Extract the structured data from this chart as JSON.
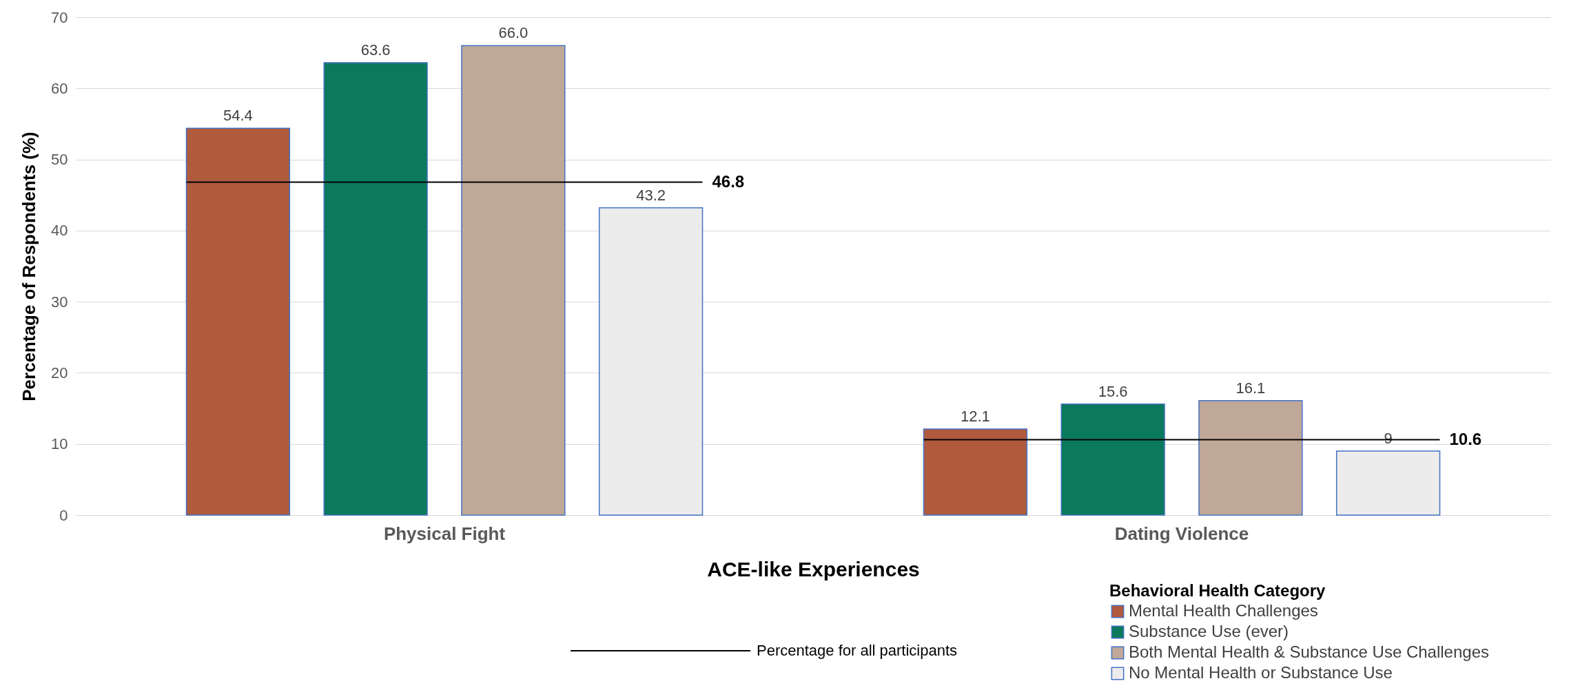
{
  "chart_data": {
    "type": "bar",
    "xlabel": "ACE-like Experiences",
    "ylabel": "Percentage of Respondents (%)",
    "legend_title": "Behavioral Health Category",
    "categories": [
      "Physical Fight",
      "Dating Violence"
    ],
    "series": [
      {
        "name": "Mental Health Challenges",
        "color": "#b05a3e",
        "values": [
          54.4,
          12.1
        ],
        "value_labels": [
          "54.4",
          "12.1"
        ]
      },
      {
        "name": "Substance Use (ever)",
        "color": "#0b7a5c",
        "values": [
          63.6,
          15.6
        ],
        "value_labels": [
          "63.6",
          "15.6"
        ]
      },
      {
        "name": "Both Mental Health & Substance Use Challenges",
        "color": "#c0a898",
        "values": [
          66.0,
          16.1
        ],
        "value_labels": [
          "66.0",
          "16.1"
        ]
      },
      {
        "name": "No Mental Health or  Substance Use",
        "color": "#ececec",
        "values": [
          43.2,
          9
        ],
        "value_labels": [
          "43.2",
          "9"
        ]
      }
    ],
    "ylim": [
      0,
      70
    ],
    "yticks": [
      0,
      10,
      20,
      30,
      40,
      50,
      60,
      70
    ],
    "grid": "y",
    "legend": "bottom right",
    "ref_lines": [
      {
        "axis": "y",
        "value": 46.8,
        "label": "46.8",
        "color": "#000000"
      },
      {
        "axis": "y",
        "value": 10.6,
        "label": "10.6",
        "color": "#000000"
      }
    ],
    "annotations": [
      "Percentage for all participants"
    ]
  }
}
